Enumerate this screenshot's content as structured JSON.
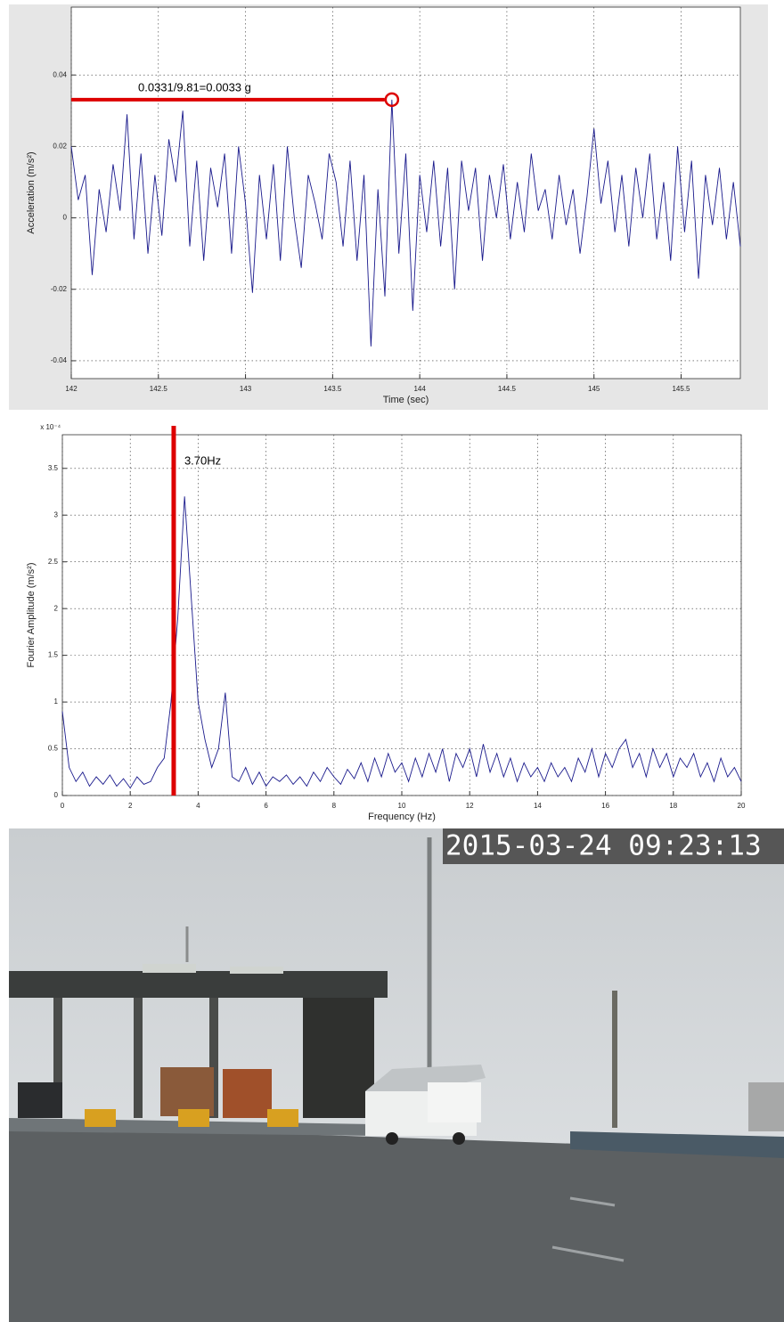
{
  "chart_data": [
    {
      "type": "line",
      "ylabel": "Acceleration (m/s²)",
      "xlabel": "Time (sec)",
      "color": "#1a1a8c",
      "grid": true,
      "xlim": [
        142,
        145.84
      ],
      "ylim": [
        -0.045,
        0.059
      ],
      "xticks": [
        142,
        142.5,
        143,
        143.5,
        144,
        144.5,
        145,
        145.5
      ],
      "yticks": [
        -0.04,
        -0.02,
        0,
        0.02,
        0.04
      ],
      "x": [
        142,
        142.04,
        142.08,
        142.12,
        142.16,
        142.2,
        142.24,
        142.28,
        142.32,
        142.36,
        142.4,
        142.44,
        142.48,
        142.52,
        142.56,
        142.6,
        142.64,
        142.68,
        142.72,
        142.76,
        142.8,
        142.84,
        142.88,
        142.92,
        142.96,
        143,
        143.04,
        143.08,
        143.12,
        143.16,
        143.2,
        143.24,
        143.28,
        143.32,
        143.36,
        143.4,
        143.44,
        143.48,
        143.52,
        143.56,
        143.6,
        143.64,
        143.68,
        143.72,
        143.76,
        143.8,
        143.84,
        143.88,
        143.92,
        143.96,
        144,
        144.04,
        144.08,
        144.12,
        144.16,
        144.2,
        144.24,
        144.28,
        144.32,
        144.36,
        144.4,
        144.44,
        144.48,
        144.52,
        144.56,
        144.6,
        144.64,
        144.68,
        144.72,
        144.76,
        144.8,
        144.84,
        144.88,
        144.92,
        144.96,
        145,
        145.04,
        145.08,
        145.12,
        145.16,
        145.2,
        145.24,
        145.28,
        145.32,
        145.36,
        145.4,
        145.44,
        145.48,
        145.52,
        145.56,
        145.6,
        145.64,
        145.68,
        145.72,
        145.76,
        145.8,
        145.84
      ],
      "values": [
        0.02,
        0.005,
        0.012,
        -0.016,
        0.008,
        -0.004,
        0.015,
        0.002,
        0.029,
        -0.006,
        0.018,
        -0.01,
        0.012,
        -0.005,
        0.022,
        0.01,
        0.03,
        -0.008,
        0.016,
        -0.012,
        0.014,
        0.003,
        0.018,
        -0.01,
        0.02,
        0.004,
        -0.021,
        0.012,
        -0.006,
        0.015,
        -0.012,
        0.02,
        0,
        -0.014,
        0.012,
        0.004,
        -0.006,
        0.018,
        0.01,
        -0.008,
        0.016,
        -0.012,
        0.012,
        -0.036,
        0.008,
        -0.022,
        0.0331,
        -0.01,
        0.018,
        -0.026,
        0.012,
        -0.004,
        0.016,
        -0.008,
        0.014,
        -0.02,
        0.016,
        0.002,
        0.014,
        -0.012,
        0.012,
        0,
        0.015,
        -0.006,
        0.01,
        -0.004,
        0.018,
        0.002,
        0.008,
        -0.006,
        0.012,
        -0.002,
        0.008,
        -0.01,
        0.006,
        0.025,
        0.004,
        0.016,
        -0.004,
        0.012,
        -0.008,
        0.014,
        0,
        0.018,
        -0.006,
        0.01,
        -0.012,
        0.02,
        -0.004,
        0.016,
        -0.017,
        0.012,
        -0.002,
        0.014,
        -0.006,
        0.01,
        -0.008
      ],
      "annotation": {
        "text": "0.0331/9.81=0.0033 g",
        "x": 143.84,
        "y": 0.0331,
        "color": "#dd0000"
      }
    },
    {
      "type": "line",
      "ylabel": "Fourier Amplitude (m/s²)",
      "xlabel": "Frequency (Hz)",
      "y_multiplier": "x 10⁻⁴",
      "color": "#1a1a8c",
      "grid": true,
      "xlim": [
        0,
        20
      ],
      "ylim": [
        0,
        3.86
      ],
      "xticks": [
        0,
        2,
        4,
        6,
        8,
        10,
        12,
        14,
        16,
        18,
        20
      ],
      "yticks": [
        0,
        0.5,
        1,
        1.5,
        2,
        2.5,
        3,
        3.5
      ],
      "x": [
        0,
        0.2,
        0.4,
        0.6,
        0.8,
        1,
        1.2,
        1.4,
        1.6,
        1.8,
        2,
        2.2,
        2.4,
        2.6,
        2.8,
        3,
        3.2,
        3.4,
        3.6,
        3.8,
        4,
        4.2,
        4.4,
        4.6,
        4.8,
        5,
        5.2,
        5.4,
        5.6,
        5.8,
        6,
        6.2,
        6.4,
        6.6,
        6.8,
        7,
        7.2,
        7.4,
        7.6,
        7.8,
        8,
        8.2,
        8.4,
        8.6,
        8.8,
        9,
        9.2,
        9.4,
        9.6,
        9.8,
        10,
        10.2,
        10.4,
        10.6,
        10.8,
        11,
        11.2,
        11.4,
        11.6,
        11.8,
        12,
        12.2,
        12.4,
        12.6,
        12.8,
        13,
        13.2,
        13.4,
        13.6,
        13.8,
        14,
        14.2,
        14.4,
        14.6,
        14.8,
        15,
        15.2,
        15.4,
        15.6,
        15.8,
        16,
        16.2,
        16.4,
        16.6,
        16.8,
        17,
        17.2,
        17.4,
        17.6,
        17.8,
        18,
        18.2,
        18.4,
        18.6,
        18.8,
        19,
        19.2,
        19.4,
        19.6,
        19.8,
        20
      ],
      "values": [
        0.9,
        0.3,
        0.15,
        0.25,
        0.1,
        0.2,
        0.12,
        0.22,
        0.1,
        0.18,
        0.08,
        0.2,
        0.12,
        0.15,
        0.3,
        0.4,
        1,
        1.9,
        3.2,
        2.1,
        1,
        0.6,
        0.3,
        0.5,
        1.1,
        0.2,
        0.15,
        0.3,
        0.12,
        0.25,
        0.1,
        0.2,
        0.15,
        0.22,
        0.12,
        0.2,
        0.1,
        0.25,
        0.15,
        0.3,
        0.2,
        0.12,
        0.28,
        0.18,
        0.35,
        0.15,
        0.4,
        0.2,
        0.45,
        0.25,
        0.35,
        0.15,
        0.4,
        0.2,
        0.45,
        0.25,
        0.5,
        0.15,
        0.45,
        0.3,
        0.5,
        0.2,
        0.55,
        0.25,
        0.45,
        0.2,
        0.4,
        0.15,
        0.35,
        0.2,
        0.3,
        0.15,
        0.35,
        0.2,
        0.3,
        0.15,
        0.4,
        0.25,
        0.5,
        0.2,
        0.45,
        0.3,
        0.5,
        0.6,
        0.3,
        0.45,
        0.2,
        0.5,
        0.3,
        0.45,
        0.2,
        0.4,
        0.3,
        0.45,
        0.2,
        0.35,
        0.15,
        0.4,
        0.2,
        0.3,
        0.15
      ],
      "annotation": {
        "text": "3.70Hz",
        "x": 3.28,
        "color": "#dd0000"
      }
    }
  ],
  "photo": {
    "timestamp": "2015-03-24 09:23:13"
  }
}
